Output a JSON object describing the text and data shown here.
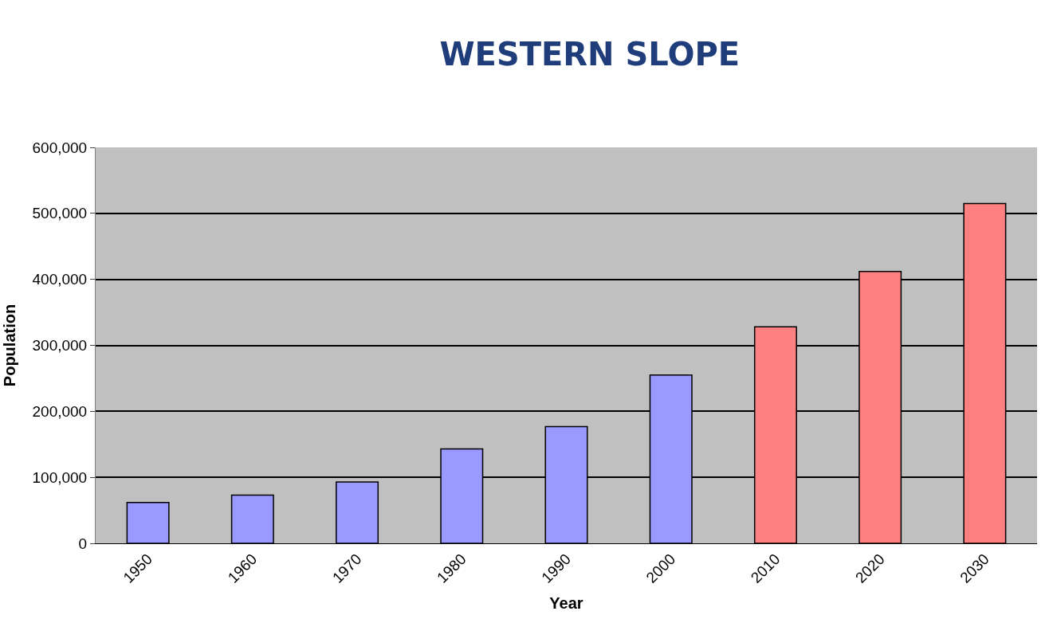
{
  "chart_data": {
    "type": "bar",
    "title": "WESTERN SLOPE",
    "xlabel": "Year",
    "ylabel": "Population",
    "categories": [
      "1950",
      "1960",
      "1970",
      "1980",
      "1990",
      "2000",
      "2010",
      "2020",
      "2030"
    ],
    "values": [
      62000,
      73000,
      93000,
      143000,
      177000,
      255000,
      328000,
      412000,
      515000
    ],
    "colors": [
      "#9999ff",
      "#9999ff",
      "#9999ff",
      "#9999ff",
      "#9999ff",
      "#9999ff",
      "#ff8080",
      "#ff8080",
      "#ff8080"
    ],
    "ylim": [
      0,
      600000
    ],
    "yticks": [
      {
        "value": 0,
        "label": "0"
      },
      {
        "value": 100000,
        "label": "100,000"
      },
      {
        "value": 200000,
        "label": "200,000"
      },
      {
        "value": 300000,
        "label": "300,000"
      },
      {
        "value": 400000,
        "label": "400,000"
      },
      {
        "value": 500000,
        "label": "500,000"
      },
      {
        "value": 600000,
        "label": "600,000"
      }
    ],
    "grid": "y",
    "legend": false
  }
}
